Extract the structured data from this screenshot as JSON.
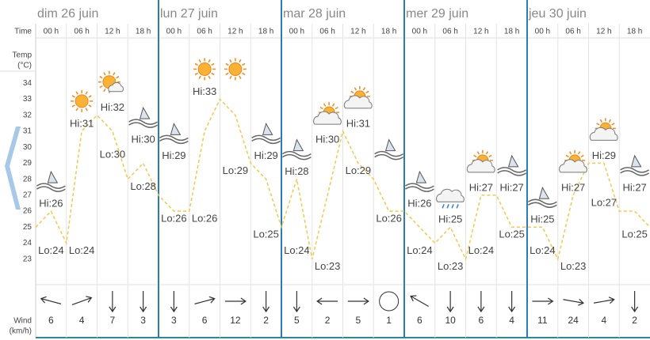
{
  "axis_labels": {
    "time": "Time",
    "temp": "Temp",
    "temp_unit": "(°C)",
    "wind": "Wind",
    "wind_unit": "(km/h)"
  },
  "days": [
    "dim 26 juin",
    "lun 27 juin",
    "mar 28 juin",
    "mer 29 juin",
    "jeu 30 juin"
  ],
  "times": [
    "00 h",
    "06 h",
    "12 h",
    "18 h"
  ],
  "chart_data": {
    "type": "line",
    "color": "#f2c94c",
    "x": [
      0,
      3,
      6,
      9,
      12,
      15,
      18,
      21,
      24,
      27,
      30,
      33,
      36,
      39,
      42,
      45,
      48,
      51,
      54,
      57,
      60,
      63,
      66,
      69,
      72,
      75,
      78,
      81,
      84,
      87,
      90,
      93,
      96,
      99,
      102,
      105,
      108,
      111,
      114,
      117,
      120
    ],
    "values": [
      25,
      26,
      24,
      31,
      32,
      31,
      28,
      29,
      27,
      26,
      26,
      31,
      33,
      32,
      29,
      28,
      25,
      28,
      23,
      27,
      31,
      29,
      28,
      26,
      26,
      25,
      24,
      25,
      23,
      27,
      27,
      25,
      25,
      25,
      23,
      27,
      29,
      29,
      26,
      26,
      25
    ],
    "xlim": [
      0,
      120
    ],
    "ylim": [
      22,
      35
    ],
    "yticks": [
      23,
      24,
      25,
      26,
      27,
      28,
      29,
      30,
      31,
      32,
      33,
      34
    ]
  },
  "slots": [
    {
      "hi": {
        "value": 26,
        "label": "Hi:26"
      },
      "lo": {
        "value": 24,
        "label": "Lo:24"
      },
      "icon": "sail",
      "wind_dir": 285,
      "wind_speed": 6
    },
    {
      "hi": {
        "value": 31,
        "label": "Hi:31"
      },
      "lo": {
        "value": 24,
        "label": "Lo:24"
      },
      "icon": "sun",
      "wind_dir": 70,
      "wind_speed": 4
    },
    {
      "hi": {
        "value": 32,
        "label": "Hi:32"
      },
      "lo": {
        "value": 30,
        "label": "Lo:30"
      },
      "icon": "sun-cloud",
      "wind_dir": 180,
      "wind_speed": 7
    },
    {
      "hi": {
        "value": 30,
        "label": "Hi:30"
      },
      "lo": {
        "value": 28,
        "label": "Lo:28"
      },
      "icon": "sail",
      "wind_dir": 180,
      "wind_speed": 3
    },
    {
      "hi": {
        "value": 29,
        "label": "Hi:29"
      },
      "lo": {
        "value": 26,
        "label": "Lo:26"
      },
      "icon": "sail",
      "wind_dir": 180,
      "wind_speed": 3
    },
    {
      "hi": {
        "value": 33,
        "label": "Hi:33"
      },
      "lo": {
        "value": 26,
        "label": "Lo:26"
      },
      "icon": "sun",
      "wind_dir": 75,
      "wind_speed": 6
    },
    {
      "hi": null,
      "lo": {
        "value": 29,
        "label": "Lo:29"
      },
      "icon": "sun",
      "wind_dir": 90,
      "wind_speed": 12
    },
    {
      "hi": {
        "value": 29,
        "label": "Hi:29"
      },
      "lo": {
        "value": 25,
        "label": "Lo:25"
      },
      "icon": "sail",
      "wind_dir": 180,
      "wind_speed": 2
    },
    {
      "hi": {
        "value": 28,
        "label": "Hi:28"
      },
      "lo": {
        "value": 24,
        "label": "Lo:24"
      },
      "icon": "sail",
      "wind_dir": 180,
      "wind_speed": 5
    },
    {
      "hi": {
        "value": 30,
        "label": "Hi:30"
      },
      "lo": {
        "value": 23,
        "label": "Lo:23"
      },
      "icon": "cloud-sun",
      "wind_dir": 270,
      "wind_speed": 2
    },
    {
      "hi": {
        "value": 31,
        "label": "Hi:31"
      },
      "lo": {
        "value": 29,
        "label": "Lo:29"
      },
      "icon": "cloud-sun",
      "wind_dir": 90,
      "wind_speed": 5
    },
    {
      "hi": null,
      "lo": {
        "value": 26,
        "label": "Lo:26"
      },
      "icon": "sail",
      "wind_dir": null,
      "wind_speed": 1
    },
    {
      "hi": {
        "value": 26,
        "label": "Hi:26"
      },
      "lo": {
        "value": 24,
        "label": "Lo:24"
      },
      "icon": "sail",
      "wind_dir": 300,
      "wind_speed": 6
    },
    {
      "hi": {
        "value": 25,
        "label": "Hi:25"
      },
      "lo": {
        "value": 23,
        "label": "Lo:23"
      },
      "icon": "rain",
      "wind_dir": 180,
      "wind_speed": 10
    },
    {
      "hi": {
        "value": 27,
        "label": "Hi:27"
      },
      "lo": {
        "value": 24,
        "label": "Lo:24"
      },
      "icon": "cloud-sun",
      "wind_dir": 180,
      "wind_speed": 6
    },
    {
      "hi": {
        "value": 27,
        "label": "Hi:27"
      },
      "lo": {
        "value": 25,
        "label": "Lo:25"
      },
      "icon": "sail",
      "wind_dir": 180,
      "wind_speed": 4
    },
    {
      "hi": {
        "value": 25,
        "label": "Hi:25"
      },
      "lo": {
        "value": 24,
        "label": "Lo:24"
      },
      "icon": "sail",
      "wind_dir": 90,
      "wind_speed": 11
    },
    {
      "hi": {
        "value": 27,
        "label": "Hi:27"
      },
      "lo": {
        "value": 23,
        "label": "Lo:23"
      },
      "icon": "cloud-sun",
      "wind_dir": 100,
      "wind_speed": 24
    },
    {
      "hi": {
        "value": 29,
        "label": "Hi:29"
      },
      "lo": {
        "value": 27,
        "label": "Lo:27"
      },
      "icon": "cloud-sun",
      "wind_dir": 80,
      "wind_speed": 4
    },
    {
      "hi": {
        "value": 27,
        "label": "Hi:27"
      },
      "lo": {
        "value": 25,
        "label": "Lo:25"
      },
      "icon": "sail",
      "wind_dir": 180,
      "wind_speed": 2
    }
  ]
}
